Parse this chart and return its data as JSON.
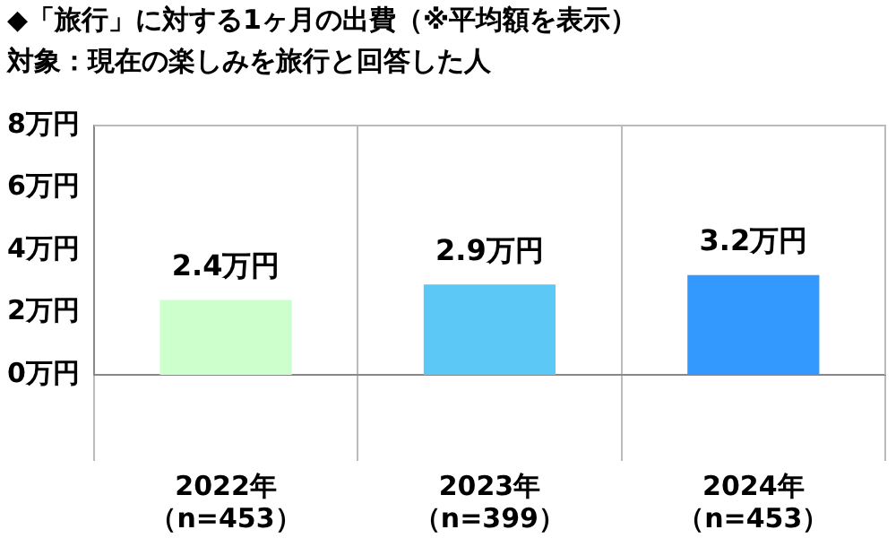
{
  "chart_data": {
    "type": "bar",
    "title": "◆「旅行」に対する1ヶ月の出費（※平均額を表示）",
    "subtitle": "対象：現在の楽しみを旅行と回答した人",
    "categories": [
      "2022年（n=453）",
      "2023年（n=399）",
      "2024年（n=453）"
    ],
    "values": [
      2.4,
      2.9,
      3.2
    ],
    "colors": [
      "#ccffcc",
      "#5bc8f5",
      "#3399ff"
    ],
    "value_labels": [
      "2.4万円",
      "2.9万円",
      "3.2万円"
    ],
    "ylim": [
      0,
      8
    ],
    "yticks": [
      {
        "value": 0,
        "label": "0万円"
      },
      {
        "value": 2,
        "label": "2万円"
      },
      {
        "value": 4,
        "label": "4万円"
      },
      {
        "value": 6,
        "label": "6万円"
      },
      {
        "value": 8,
        "label": "8万円"
      }
    ],
    "grid": "x",
    "legend": false
  }
}
